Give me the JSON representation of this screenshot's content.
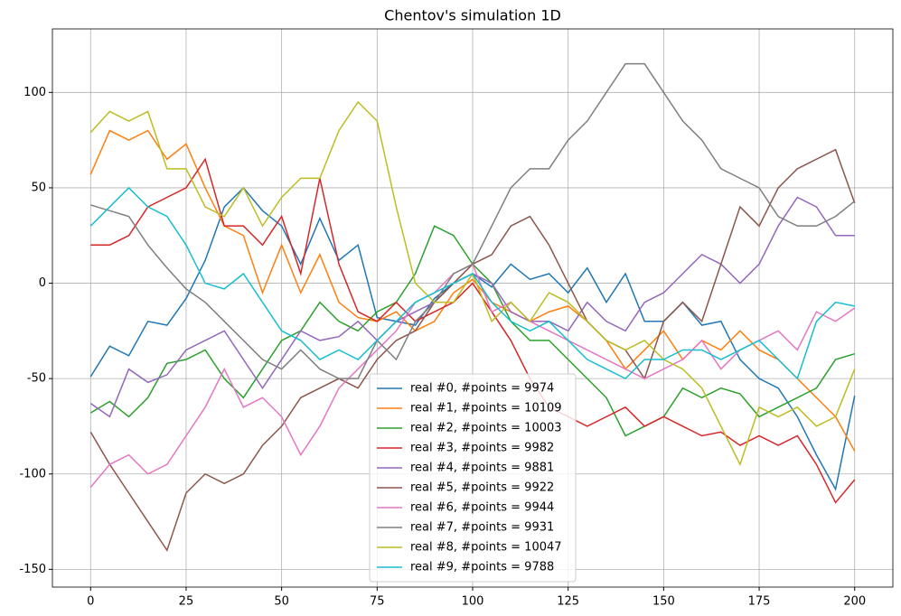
{
  "chart_data": {
    "type": "line",
    "title": "Chentov's simulation 1D",
    "x": [
      0,
      5,
      10,
      15,
      20,
      25,
      30,
      35,
      40,
      45,
      50,
      55,
      60,
      65,
      70,
      75,
      80,
      85,
      90,
      95,
      100,
      105,
      110,
      115,
      120,
      125,
      130,
      135,
      140,
      145,
      150,
      155,
      160,
      165,
      170,
      175,
      180,
      185,
      190,
      195,
      200
    ],
    "series": [
      {
        "name": "real #0, #points = 9974",
        "color": "#1f77b4",
        "values": [
          -49,
          -33,
          -38,
          -20,
          -22,
          -8,
          12,
          40,
          50,
          38,
          30,
          10,
          34,
          12,
          20,
          -18,
          -20,
          -22,
          -8,
          0,
          5,
          -2,
          10,
          2,
          5,
          -5,
          8,
          -10,
          5,
          -20,
          -20,
          -10,
          -22,
          -20,
          -40,
          -50,
          -55,
          -70,
          -90,
          -108,
          -59
        ]
      },
      {
        "name": "real #1, #points = 10109",
        "color": "#ff7f0e",
        "values": [
          57,
          80,
          75,
          80,
          65,
          73,
          50,
          30,
          25,
          -5,
          20,
          -5,
          15,
          -10,
          -18,
          -20,
          -15,
          -25,
          -20,
          -5,
          2,
          -10,
          -15,
          -20,
          -15,
          -12,
          -20,
          -30,
          -45,
          -35,
          -25,
          -40,
          -30,
          -35,
          -25,
          -35,
          -40,
          -50,
          -60,
          -70,
          -88
        ]
      },
      {
        "name": "real #2, #points = 10003",
        "color": "#2ca02c",
        "values": [
          -68,
          -62,
          -70,
          -60,
          -42,
          -40,
          -35,
          -50,
          -60,
          -45,
          -30,
          -25,
          -10,
          -20,
          -25,
          -15,
          -10,
          5,
          30,
          25,
          10,
          0,
          -20,
          -30,
          -30,
          -40,
          -50,
          -60,
          -80,
          -75,
          -70,
          -55,
          -60,
          -55,
          -58,
          -70,
          -65,
          -60,
          -55,
          -40,
          -37
        ]
      },
      {
        "name": "real #3, #points = 9982",
        "color": "#d62728",
        "values": [
          20,
          20,
          25,
          40,
          45,
          50,
          65,
          30,
          30,
          20,
          35,
          5,
          55,
          10,
          -15,
          -20,
          -10,
          -20,
          -15,
          -10,
          0,
          -15,
          -30,
          -50,
          -65,
          -70,
          -75,
          -70,
          -65,
          -75,
          -70,
          -75,
          -80,
          -78,
          -85,
          -80,
          -85,
          -80,
          -95,
          -115,
          -103
        ]
      },
      {
        "name": "real #4, #points = 9881",
        "color": "#9467bd",
        "values": [
          -63,
          -70,
          -45,
          -52,
          -48,
          -35,
          -30,
          -25,
          -40,
          -55,
          -40,
          -25,
          -30,
          -28,
          -20,
          -30,
          -20,
          -15,
          -10,
          0,
          5,
          0,
          -15,
          -20,
          -20,
          -25,
          -10,
          -20,
          -25,
          -10,
          -5,
          5,
          15,
          10,
          0,
          10,
          30,
          45,
          40,
          25,
          25
        ]
      },
      {
        "name": "real #5, #points = 9922",
        "color": "#8c564b",
        "values": [
          -78,
          -95,
          -110,
          -125,
          -140,
          -110,
          -100,
          -105,
          -100,
          -85,
          -75,
          -60,
          -55,
          -50,
          -55,
          -40,
          -30,
          -25,
          -10,
          0,
          10,
          15,
          30,
          35,
          20,
          0,
          -20,
          -30,
          -35,
          -50,
          -20,
          -10,
          -20,
          10,
          40,
          30,
          50,
          60,
          65,
          70,
          42
        ]
      },
      {
        "name": "real #6, #points = 9944",
        "color": "#e377c2",
        "values": [
          -107,
          -95,
          -90,
          -100,
          -95,
          -80,
          -65,
          -45,
          -65,
          -60,
          -70,
          -90,
          -75,
          -55,
          -45,
          -35,
          -25,
          -10,
          -5,
          5,
          10,
          -15,
          -10,
          -20,
          -25,
          -30,
          -35,
          -40,
          -45,
          -50,
          -45,
          -40,
          -30,
          -45,
          -35,
          -30,
          -25,
          -35,
          -15,
          -20,
          -13
        ]
      },
      {
        "name": "real #7, #points = 9931",
        "color": "#7f7f7f",
        "values": [
          41,
          38,
          35,
          20,
          8,
          -3,
          -10,
          -20,
          -30,
          -40,
          -45,
          -35,
          -45,
          -50,
          -50,
          -30,
          -40,
          -20,
          -10,
          5,
          10,
          30,
          50,
          60,
          60,
          75,
          85,
          100,
          115,
          115,
          100,
          85,
          75,
          60,
          55,
          50,
          35,
          30,
          30,
          35,
          43
        ]
      },
      {
        "name": "real #8, #points = 10047",
        "color": "#bcbd22",
        "values": [
          79,
          90,
          85,
          90,
          60,
          60,
          40,
          35,
          50,
          30,
          45,
          55,
          55,
          80,
          95,
          85,
          40,
          0,
          -10,
          -10,
          5,
          -20,
          -10,
          -20,
          -5,
          -10,
          -20,
          -30,
          -35,
          -30,
          -40,
          -45,
          -55,
          -75,
          -95,
          -65,
          -70,
          -65,
          -75,
          -70,
          -45
        ]
      },
      {
        "name": "real #9, #points = 9788",
        "color": "#17becf",
        "values": [
          30,
          40,
          50,
          40,
          35,
          20,
          0,
          -3,
          5,
          -10,
          -25,
          -30,
          -40,
          -35,
          -40,
          -30,
          -20,
          -10,
          -5,
          0,
          5,
          -10,
          -20,
          -25,
          -20,
          -30,
          -40,
          -45,
          -50,
          -40,
          -40,
          -35,
          -35,
          -40,
          -35,
          -30,
          -40,
          -50,
          -20,
          -10,
          -12
        ]
      }
    ],
    "xlim": [
      -10,
      210
    ],
    "ylim": [
      -159.3,
      133.3
    ],
    "xticks": [
      0,
      25,
      50,
      75,
      100,
      125,
      150,
      175,
      200
    ],
    "yticks": [
      -150,
      -100,
      -50,
      0,
      50,
      100
    ],
    "grid": true,
    "legend": "lower center"
  }
}
